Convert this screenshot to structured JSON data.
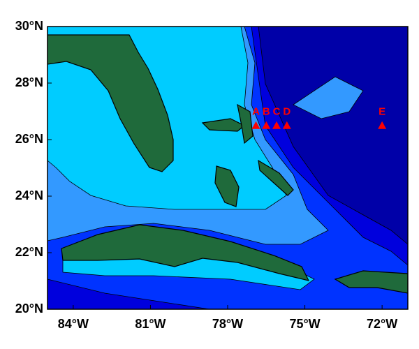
{
  "chart_data": {
    "type": "map",
    "xlim": [
      -85,
      -71
    ],
    "ylim": [
      20,
      30
    ],
    "xticks": [
      {
        "value": -84,
        "label": "84°W"
      },
      {
        "value": -81,
        "label": "81°W"
      },
      {
        "value": -78,
        "label": "78°W"
      },
      {
        "value": -75,
        "label": "75°W"
      },
      {
        "value": -72,
        "label": "72°W"
      }
    ],
    "yticks": [
      {
        "value": 20,
        "label": "20°N"
      },
      {
        "value": 22,
        "label": "22°N"
      },
      {
        "value": 24,
        "label": "24°N"
      },
      {
        "value": 26,
        "label": "26°N"
      },
      {
        "value": 28,
        "label": "28°N"
      },
      {
        "value": 30,
        "label": "30°N"
      }
    ],
    "stations": {
      "x": [
        -76.9,
        -76.5,
        -76.1,
        -75.7,
        -72.0
      ],
      "y": [
        26.5,
        26.5,
        26.5,
        26.5,
        26.5
      ],
      "labels": [
        "A",
        "B",
        "C",
        "D",
        "E"
      ],
      "color": "#ff0000"
    }
  }
}
